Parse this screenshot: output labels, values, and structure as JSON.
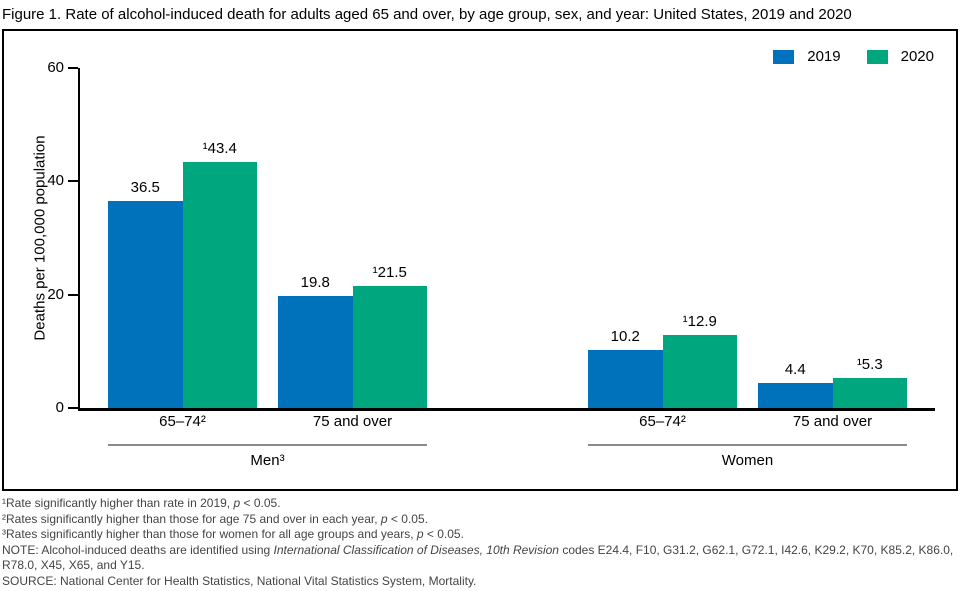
{
  "title": "Figure 1. Rate of alcohol-induced death for adults aged 65 and over, by age group, sex, and year: United States, 2019 and 2020",
  "chart_data": {
    "type": "bar",
    "title": "Figure 1. Rate of alcohol-induced death for adults aged 65 and over, by age group, sex, and year: United States, 2019 and 2020",
    "ylabel": "Deaths per 100,000 population",
    "xlabel": "",
    "ylim": [
      0,
      60
    ],
    "yticks": [
      0,
      20,
      40,
      60
    ],
    "grid": false,
    "legend_position": "top-right",
    "series": [
      {
        "name": "2019",
        "color": "#0072BC"
      },
      {
        "name": "2020",
        "color": "#00A67D"
      }
    ],
    "groups": [
      {
        "label": "Men³",
        "categories": [
          {
            "label": "65–74²",
            "values": [
              36.5,
              43.4
            ],
            "value_labels": [
              "36.5",
              "¹43.4"
            ]
          },
          {
            "label": "75 and over",
            "values": [
              19.8,
              21.5
            ],
            "value_labels": [
              "19.8",
              "¹21.5"
            ]
          }
        ]
      },
      {
        "label": "Women",
        "categories": [
          {
            "label": "65–74²",
            "values": [
              10.2,
              12.9
            ],
            "value_labels": [
              "10.2",
              "¹12.9"
            ]
          },
          {
            "label": "75 and over",
            "values": [
              4.4,
              5.3
            ],
            "value_labels": [
              "4.4",
              "¹5.3"
            ]
          }
        ]
      }
    ]
  },
  "footnotes": [
    [
      {
        "text": "¹Rate significantly higher than rate in 2019, "
      },
      {
        "text": "p",
        "italic": true
      },
      {
        "text": " < 0.05."
      }
    ],
    [
      {
        "text": "²Rates significantly higher than those for age 75 and over in each year, "
      },
      {
        "text": "p",
        "italic": true
      },
      {
        "text": " < 0.05."
      }
    ],
    [
      {
        "text": "³Rates significantly higher than those for women for all age groups and years, "
      },
      {
        "text": "p",
        "italic": true
      },
      {
        "text": " < 0.05."
      }
    ],
    [
      {
        "text": "NOTE: Alcohol-induced deaths are identified using "
      },
      {
        "text": "International Classification of Diseases, 10th Revision",
        "italic": true
      },
      {
        "text": " codes E24.4, F10, G31.2, G62.1, G72.1, I42.6, K29.2, K70, K85.2, K86.0, R78.0, X45, X65, and Y15."
      }
    ],
    [
      {
        "text": "SOURCE: National Center for Health Statistics, National Vital Statistics System, Mortality."
      }
    ]
  ]
}
